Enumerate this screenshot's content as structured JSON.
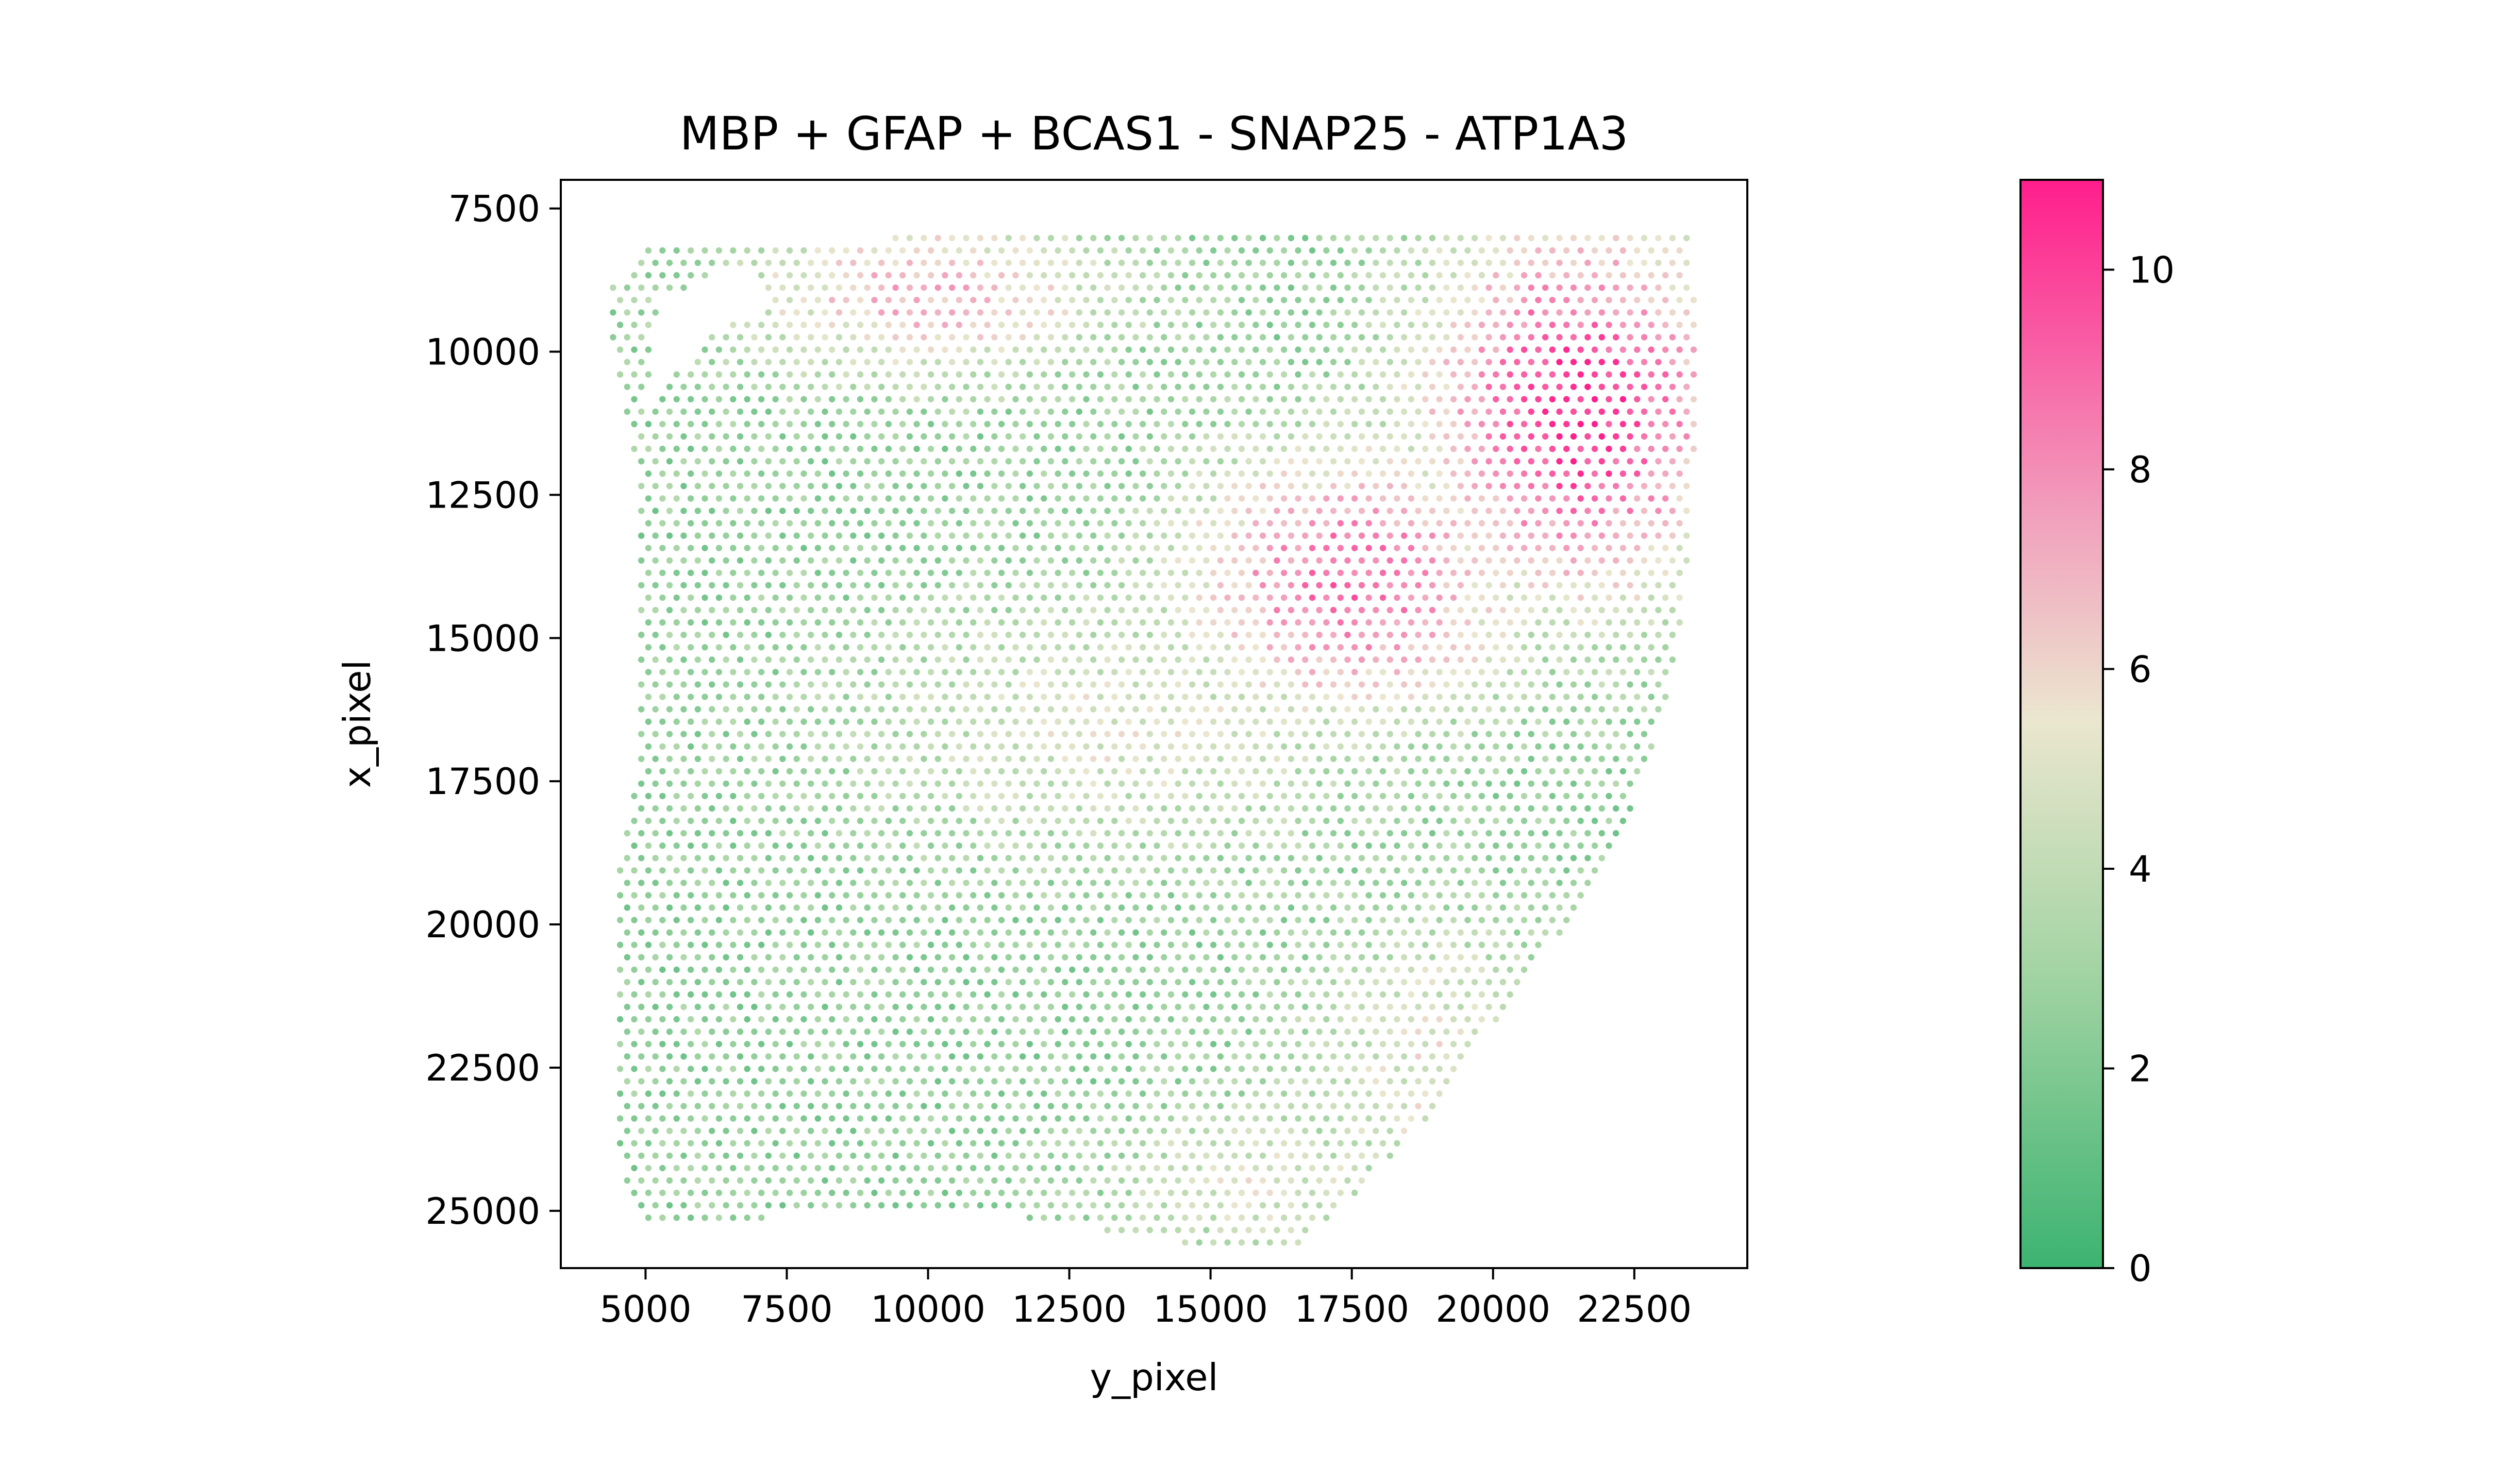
{
  "chart_data": {
    "type": "scatter",
    "title": "MBP + GFAP + BCAS1 - SNAP25 - ATP1A3",
    "xlabel": "y_pixel",
    "ylabel": "x_pixel",
    "xlim": [
      3500,
      24500
    ],
    "ylim": [
      26000,
      7000
    ],
    "y_inverted": true,
    "x_ticks": [
      5000,
      7500,
      10000,
      12500,
      15000,
      17500,
      20000,
      22500
    ],
    "x_tick_labels": [
      "5000",
      "7500",
      "10000",
      "12500",
      "15000",
      "17500",
      "20000",
      "22500"
    ],
    "y_ticks": [
      7500,
      10000,
      12500,
      15000,
      17500,
      20000,
      22500,
      25000
    ],
    "y_tick_labels": [
      "7500",
      "10000",
      "12500",
      "15000",
      "17500",
      "20000",
      "22500",
      "25000"
    ],
    "grid": false,
    "marker": "hexagonal grid of small circular spots",
    "colormap": {
      "stops": [
        {
          "value": 0,
          "color": "#3cb371"
        },
        {
          "value": 3,
          "color": "#a4d4a4"
        },
        {
          "value": 5.5,
          "color": "#ebe6cf"
        },
        {
          "value": 7.5,
          "color": "#f1a1bd"
        },
        {
          "value": 10.9,
          "color": "#ff1e8c"
        }
      ],
      "vmin": 0,
      "vmax": 10.9
    },
    "colorbar": {
      "ticks": [
        0,
        2,
        4,
        6,
        8,
        10
      ],
      "tick_labels": [
        "0",
        "2",
        "4",
        "6",
        "8",
        "10"
      ],
      "range": [
        0,
        10.9
      ]
    },
    "spot_spacing": 250,
    "tissue_boundary": [
      [
        4400,
        8900
      ],
      [
        5000,
        8200
      ],
      [
        6000,
        8150
      ],
      [
        8000,
        8050
      ],
      [
        12000,
        7950
      ],
      [
        16000,
        7900
      ],
      [
        20000,
        7850
      ],
      [
        23500,
        7800
      ],
      [
        23600,
        10000
      ],
      [
        23500,
        13500
      ],
      [
        23200,
        15500
      ],
      [
        22800,
        17000
      ],
      [
        22300,
        18500
      ],
      [
        21500,
        19800
      ],
      [
        20500,
        21000
      ],
      [
        19500,
        22500
      ],
      [
        18500,
        23800
      ],
      [
        17500,
        24800
      ],
      [
        16500,
        25600
      ],
      [
        15500,
        25700
      ],
      [
        13500,
        25400
      ],
      [
        11500,
        25100
      ],
      [
        9000,
        24900
      ],
      [
        7500,
        25000
      ],
      [
        6500,
        25300
      ],
      [
        5200,
        25300
      ],
      [
        4700,
        25000
      ],
      [
        4500,
        23500
      ],
      [
        4500,
        19000
      ],
      [
        4800,
        17500
      ],
      [
        4900,
        12000
      ],
      [
        4700,
        11500
      ],
      [
        4400,
        10000
      ]
    ],
    "excluded_region": [
      [
        6800,
        8400
      ],
      [
        5200,
        9100
      ],
      [
        5000,
        11000
      ],
      [
        6000,
        9800
      ],
      [
        7200,
        9200
      ]
    ],
    "value_regions": [
      {
        "desc": "upper-right high region",
        "center": [
          21500,
          11000
        ],
        "radius": [
          3000,
          3500
        ],
        "peak_value": 10.5
      },
      {
        "desc": "central high region",
        "center": [
          17500,
          14000
        ],
        "radius": [
          3200,
          2500
        ],
        "peak_value": 9.0
      },
      {
        "desc": "upper-middle moderate band",
        "center": [
          10000,
          9000
        ],
        "radius": [
          3500,
          1500
        ],
        "peak_value": 7.0
      },
      {
        "desc": "central tan band",
        "center": [
          13500,
          16500
        ],
        "radius": [
          5000,
          2500
        ],
        "peak_value": 5.0
      },
      {
        "desc": "lower-right tan band",
        "center": [
          19000,
          22500
        ],
        "radius": [
          2500,
          3000
        ],
        "peak_value": 5.2
      },
      {
        "desc": "lower-middle tan band",
        "center": [
          16000,
          24500
        ],
        "radius": [
          3000,
          1500
        ],
        "peak_value": 5.0
      }
    ],
    "background_value": 2.5
  }
}
